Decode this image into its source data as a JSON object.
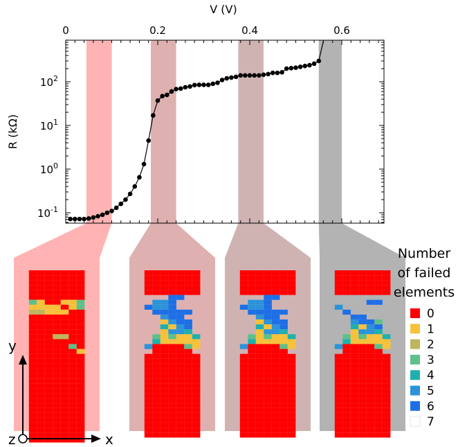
{
  "chart_data": {
    "type": "scatter",
    "xlabel": "V (V)",
    "ylabel": "R (kΩ)",
    "x_ticks": [
      "0",
      "0.2",
      "0.4",
      "0.6"
    ],
    "y_ticks": [
      {
        "base": "10",
        "exp": "-1"
      },
      {
        "base": "10",
        "exp": "0"
      },
      {
        "base": "10",
        "exp": "1"
      },
      {
        "base": "10",
        "exp": "2"
      }
    ],
    "xlim": [
      0,
      0.69
    ],
    "ylim": [
      0.055,
      900
    ],
    "y_scale": "log",
    "x": [
      0.01,
      0.02,
      0.03,
      0.04,
      0.05,
      0.06,
      0.07,
      0.08,
      0.09,
      0.1,
      0.11,
      0.12,
      0.13,
      0.14,
      0.15,
      0.16,
      0.17,
      0.18,
      0.19,
      0.2,
      0.21,
      0.22,
      0.23,
      0.24,
      0.25,
      0.26,
      0.27,
      0.28,
      0.29,
      0.3,
      0.31,
      0.32,
      0.33,
      0.34,
      0.35,
      0.36,
      0.37,
      0.38,
      0.39,
      0.4,
      0.41,
      0.42,
      0.43,
      0.44,
      0.45,
      0.46,
      0.47,
      0.48,
      0.49,
      0.5,
      0.51,
      0.52,
      0.53,
      0.54,
      0.55
    ],
    "y": [
      0.072,
      0.072,
      0.072,
      0.072,
      0.074,
      0.078,
      0.083,
      0.09,
      0.1,
      0.11,
      0.13,
      0.16,
      0.2,
      0.27,
      0.4,
      0.65,
      1.3,
      4.5,
      17,
      37,
      47,
      50,
      60,
      68,
      70,
      75,
      78,
      84,
      85,
      85,
      85,
      90,
      95,
      110,
      120,
      125,
      130,
      140,
      140,
      140,
      140,
      140,
      145,
      150,
      160,
      160,
      165,
      200,
      205,
      210,
      220,
      230,
      240,
      260,
      300
    ],
    "jump_line": [
      [
        0.55,
        300
      ],
      [
        0.56,
        850
      ]
    ],
    "bands": [
      {
        "x": [
          0.045,
          0.1
        ],
        "color": "#ffb3b3"
      },
      {
        "x": [
          0.185,
          0.24
        ],
        "color": "#deb0b0"
      },
      {
        "x": [
          0.375,
          0.43
        ],
        "color": "#cfb3b3"
      },
      {
        "x": [
          0.55,
          0.6
        ],
        "color": "#b3b3b3"
      }
    ],
    "grid": false
  },
  "colormap": {
    "title_lines": [
      "Number",
      "of failed",
      "elements"
    ],
    "levels": [
      {
        "label": "0",
        "color": "#ff0000"
      },
      {
        "label": "1",
        "color": "#f7c13b"
      },
      {
        "label": "2",
        "color": "#bdb65c"
      },
      {
        "label": "3",
        "color": "#5fc08a"
      },
      {
        "label": "4",
        "color": "#1fb0ae"
      },
      {
        "label": "5",
        "color": "#2c93d9"
      },
      {
        "label": "6",
        "color": "#1e6fe6"
      },
      {
        "label": "7",
        "color": "#ffffff"
      }
    ]
  },
  "panels": [
    {
      "background": "#ffb3b3",
      "grid": [
        "0000000",
        "0000000",
        "0000000",
        "0000000",
        "0000000",
        "0000000",
        "3100113",
        "1111013",
        "2211100",
        "0000000",
        "0000000",
        "0000000",
        "0000000",
        "0002200",
        "0000000",
        "0000030",
        "0000001",
        "0000000",
        "0000000",
        "0000000",
        "0000000",
        "0000000",
        "0000000",
        "0000000",
        "0000000",
        "0000000",
        "0000000",
        "0000000",
        "0000000",
        "0000000",
        "0000000",
        "0000000",
        "0000000",
        "0000000",
        "0000000"
      ]
    },
    {
      "background": "#deb0b0",
      "grid": [
        "0000000",
        "0000000",
        "0000000",
        "0000000",
        "0000000",
        "7776677",
        "7556777",
        "6556777",
        "7666667",
        "7756677",
        "7715667",
        "7741567",
        "7715547",
        "7313114",
        "7411111",
        "5000031",
        "7000007",
        "0000000",
        "0000000",
        "0000000",
        "0000000",
        "0000000",
        "0000000",
        "0000000",
        "0000000",
        "0000000",
        "0000000",
        "0000000",
        "0000000",
        "0000000",
        "0000000",
        "0000000",
        "0000000",
        "0000000"
      ]
    },
    {
      "background": "#cfb3b3",
      "grid": [
        "0000000",
        "0000000",
        "0000000",
        "0000000",
        "0000000",
        "7776677",
        "7556777",
        "6556777",
        "7666667",
        "7756677",
        "7715667",
        "7741567",
        "7715547",
        "7313114",
        "7411111",
        "5000031",
        "7000007",
        "0000000",
        "0000000",
        "0000000",
        "0000000",
        "0000000",
        "0000000",
        "0000000",
        "0000000",
        "0000000",
        "0000000",
        "0000000",
        "0000000",
        "0000000",
        "0000000",
        "0000000",
        "0000000",
        "0000000"
      ]
    },
    {
      "background": "#b3b3b3",
      "grid": [
        "0000000",
        "0000000",
        "0000000",
        "0000000",
        "0000000",
        "7777777",
        "7777667",
        "5777777",
        "7677777",
        "7766777",
        "7756637",
        "7741567",
        "7715547",
        "7313114",
        "7411111",
        "5000031",
        "7000007",
        "0000000",
        "0000000",
        "0000000",
        "0000000",
        "0000000",
        "0000000",
        "0000000",
        "0000000",
        "0000000",
        "0000000",
        "0000000",
        "0000000",
        "0000000",
        "0000000",
        "0000000",
        "0000000",
        "0000000"
      ]
    }
  ],
  "axes": {
    "x": "x",
    "y": "y",
    "z": "z"
  }
}
